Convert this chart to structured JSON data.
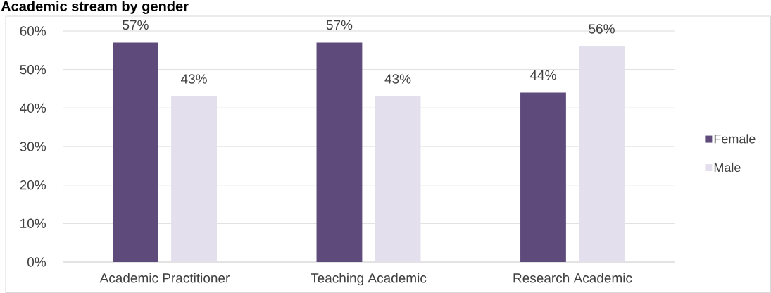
{
  "chart_data": {
    "type": "bar",
    "title": "Academic stream by gender",
    "categories": [
      "Academic Practitioner",
      "Teaching Academic",
      "Research Academic"
    ],
    "series": [
      {
        "name": "Female",
        "color": "#5f4b7b",
        "values": [
          57,
          57,
          44
        ],
        "value_labels": [
          "57%",
          "57%",
          "44%"
        ]
      },
      {
        "name": "Male",
        "color": "#e4dfec",
        "values": [
          43,
          43,
          56
        ],
        "value_labels": [
          "43%",
          "43%",
          "56%"
        ]
      }
    ],
    "ylim": [
      0,
      60
    ],
    "yticks": [
      {
        "value": 0,
        "label": "0%"
      },
      {
        "value": 10,
        "label": "10%"
      },
      {
        "value": 20,
        "label": "20%"
      },
      {
        "value": 30,
        "label": "30%"
      },
      {
        "value": 40,
        "label": "40%"
      },
      {
        "value": 50,
        "label": "50%"
      },
      {
        "value": 60,
        "label": "60%"
      }
    ],
    "grid": "y",
    "legend": "right"
  }
}
